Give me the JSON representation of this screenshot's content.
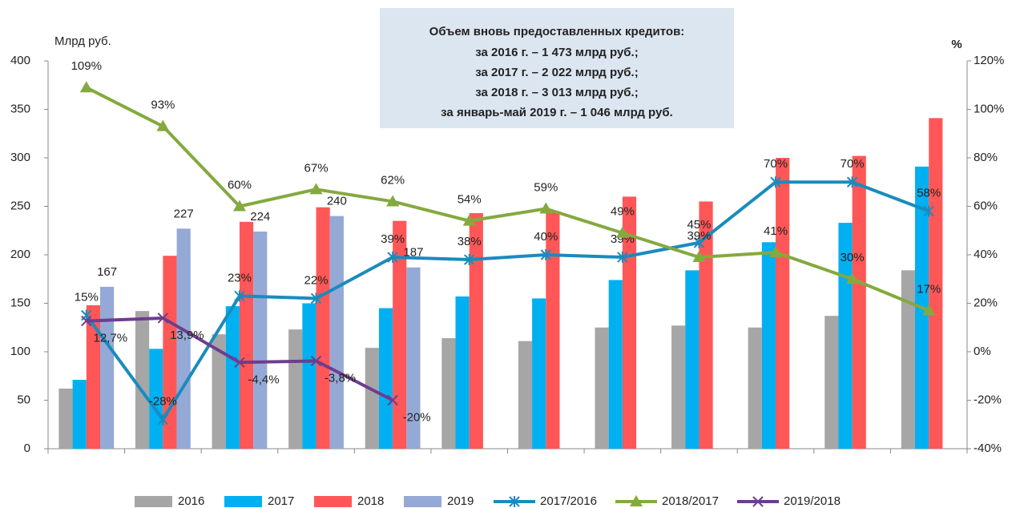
{
  "chart_data": {
    "type": "bar",
    "annotation": [
      "Объем вновь предоставленных кредитов:",
      "за 2016 г. – 1 473 млрд руб.;",
      "за 2017 г. – 2 022 млрд руб.;",
      "за 2018 г. – 3 013 млрд руб.;",
      "за январь-май 2019 г. – 1 046 млрд руб."
    ],
    "ylabel": "Млрд руб.",
    "y2label": "%",
    "categories": [
      null,
      null,
      null,
      null,
      null,
      null,
      null,
      null,
      null,
      null,
      null,
      null
    ],
    "ylim": [
      0,
      400
    ],
    "yticks": [
      0,
      50,
      100,
      150,
      200,
      250,
      300,
      350,
      400
    ],
    "y2lim": [
      -40,
      120
    ],
    "y2ticks": [
      {
        "value": -40,
        "label": "-40%"
      },
      {
        "value": -20,
        "label": "-20%"
      },
      {
        "value": 0,
        "label": "0%"
      },
      {
        "value": 20,
        "label": "20%"
      },
      {
        "value": 40,
        "label": "40%"
      },
      {
        "value": 60,
        "label": "60%"
      },
      {
        "value": 80,
        "label": "80%"
      },
      {
        "value": 100,
        "label": "100%"
      },
      {
        "value": 120,
        "label": "120%"
      }
    ],
    "series": [
      {
        "name": "2016",
        "type": "bar",
        "color": "#a6a6a6",
        "values": [
          62,
          142,
          118,
          123,
          104,
          114,
          111,
          125,
          127,
          125,
          137,
          184
        ]
      },
      {
        "name": "2017",
        "type": "bar",
        "color": "#00b0f0",
        "values": [
          71,
          103,
          147,
          150,
          145,
          157,
          155,
          174,
          184,
          213,
          233,
          291
        ]
      },
      {
        "name": "2018",
        "type": "bar",
        "color": "#ff5757",
        "values": [
          148,
          199,
          234,
          249,
          235,
          243,
          245,
          260,
          255,
          300,
          302,
          341
        ]
      },
      {
        "name": "2019",
        "type": "bar",
        "color": "#95a9d6",
        "labeled": true,
        "values": [
          167,
          227,
          224,
          240,
          187,
          null,
          null,
          null,
          null,
          null,
          null,
          null
        ]
      },
      {
        "name": "2017/2016",
        "type": "line",
        "axis": "y2",
        "color": "#1a8bbd",
        "marker": "star",
        "values": [
          15,
          -28,
          23,
          22,
          39,
          38,
          40,
          39,
          45,
          70,
          70,
          58
        ],
        "value_labels": [
          "15%",
          "-28%",
          "23%",
          "22%",
          "39%",
          "38%",
          "40%",
          "39%",
          "45%",
          "70%",
          "70%",
          "58%"
        ]
      },
      {
        "name": "2018/2017",
        "type": "line",
        "axis": "y2",
        "color": "#84a93f",
        "marker": "triangle",
        "values": [
          109,
          93,
          60,
          67,
          62,
          54,
          59,
          49,
          39,
          41,
          30,
          17
        ],
        "value_labels": [
          "109%",
          "93%",
          "60%",
          "67%",
          "62%",
          "54%",
          "59%",
          "49%",
          "39%",
          "41%",
          "30%",
          "17%"
        ]
      },
      {
        "name": "2019/2018",
        "type": "line",
        "axis": "y2",
        "color": "#6e3d8e",
        "marker": "x",
        "values": [
          12.7,
          13.9,
          -4.4,
          -3.8,
          -20,
          null,
          null,
          null,
          null,
          null,
          null,
          null
        ],
        "value_labels": [
          "12,7%",
          "13,9%",
          "-4,4%",
          "-3,8%",
          "-20%",
          null,
          null,
          null,
          null,
          null,
          null,
          null
        ]
      }
    ]
  }
}
